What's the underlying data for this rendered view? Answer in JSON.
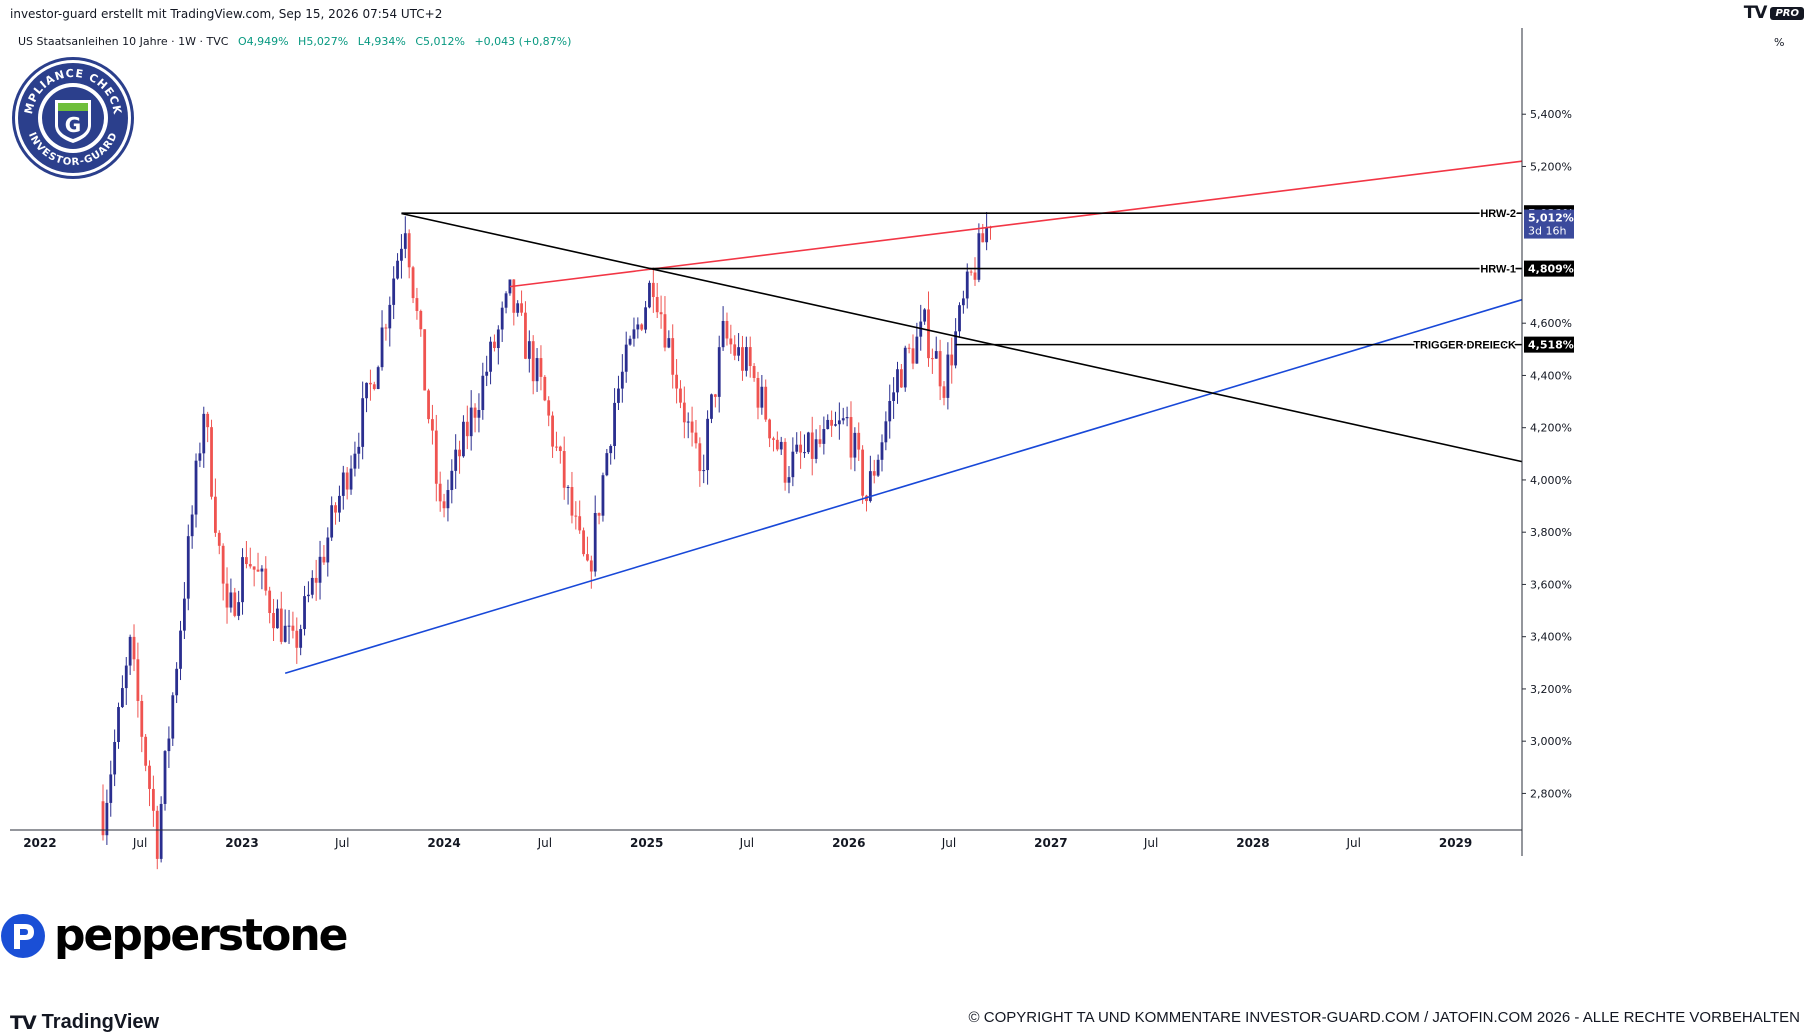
{
  "header": {
    "caption": "investor-guard erstellt mit TradingView.com, Sep 15, 2026 07:54 UTC+2",
    "tv_pro_logo": "TV",
    "tv_pro_badge": "PRO"
  },
  "symbol_line": {
    "name": "US Staatsanleihen 10 Jahre · 1W · TVC",
    "open": "O4,949%",
    "high": "H5,027%",
    "low": "L4,934%",
    "close": "C5,012%",
    "change": "+0,043 (+0,87%)"
  },
  "badge": {
    "top_text": "COMPLIANCE CHECKED",
    "bottom_text": "INVESTOR-GUARD",
    "letter": "G"
  },
  "watermark": {
    "brand": "pepperstone",
    "icon": "pepperstone-p-icon"
  },
  "footer": {
    "tradingview_brand": "TradingView",
    "tv_logo": "TV",
    "copyright": "© COPYRIGHT TA UND KOMMENTARE INVESTOR-GUARD.COM / JATOFIN.COM 2026 - ALLE RECHTE VORBEHALTEN"
  },
  "colors": {
    "up": "#2a2e8f",
    "down": "#ef5350",
    "red_line": "#f23645",
    "blue_line": "#1848d8",
    "black_line": "#000000",
    "last_price_bg": "#3b4a9c"
  },
  "chart_data": {
    "type": "candlestick",
    "unit_label": "%",
    "y_ticks": [
      {
        "value": 2.8,
        "label": "2,800%"
      },
      {
        "value": 3.0,
        "label": "3,000%"
      },
      {
        "value": 3.2,
        "label": "3,200%"
      },
      {
        "value": 3.4,
        "label": "3,400%"
      },
      {
        "value": 3.6,
        "label": "3,600%"
      },
      {
        "value": 3.8,
        "label": "3,800%"
      },
      {
        "value": 4.0,
        "label": "4,000%"
      },
      {
        "value": 4.2,
        "label": "4,200%"
      },
      {
        "value": 4.4,
        "label": "4,400%"
      },
      {
        "value": 4.6,
        "label": "4,600%"
      },
      {
        "value": 5.2,
        "label": "5,200%"
      },
      {
        "value": 5.4,
        "label": "5,400%"
      }
    ],
    "ylim": [
      2.66,
      5.73
    ],
    "x_ticks": [
      {
        "date": "2022-01-01",
        "label": "2022",
        "bold": true
      },
      {
        "date": "2022-07-01",
        "label": "Jul",
        "bold": false
      },
      {
        "date": "2023-01-01",
        "label": "2023",
        "bold": true
      },
      {
        "date": "2023-07-01",
        "label": "Jul",
        "bold": false
      },
      {
        "date": "2024-01-01",
        "label": "2024",
        "bold": true
      },
      {
        "date": "2024-07-01",
        "label": "Jul",
        "bold": false
      },
      {
        "date": "2025-01-01",
        "label": "2025",
        "bold": true
      },
      {
        "date": "2025-07-01",
        "label": "Jul",
        "bold": false
      },
      {
        "date": "2026-01-01",
        "label": "2026",
        "bold": true
      },
      {
        "date": "2026-07-01",
        "label": "Jul",
        "bold": false
      },
      {
        "date": "2027-01-01",
        "label": "2027",
        "bold": true
      },
      {
        "date": "2027-07-01",
        "label": "Jul",
        "bold": false
      },
      {
        "date": "2028-01-01",
        "label": "2028",
        "bold": true
      },
      {
        "date": "2028-07-01",
        "label": "Jul",
        "bold": false
      },
      {
        "date": "2029-01-01",
        "label": "2029",
        "bold": true
      }
    ],
    "xlim": [
      "2021-11-08",
      "2029-05-01"
    ],
    "price_path": [
      [
        "2022-04-25",
        2.72
      ],
      [
        "2022-06-13",
        3.35
      ],
      [
        "2022-08-01",
        2.62
      ],
      [
        "2022-10-24",
        4.28
      ],
      [
        "2022-12-05",
        3.45
      ],
      [
        "2023-01-09",
        3.72
      ],
      [
        "2023-04-03",
        3.35
      ],
      [
        "2023-06-05",
        3.78
      ],
      [
        "2023-08-21",
        4.35
      ],
      [
        "2023-10-23",
        5.0
      ],
      [
        "2023-12-25",
        3.87
      ],
      [
        "2024-04-29",
        4.7
      ],
      [
        "2024-06-24",
        4.35
      ],
      [
        "2024-09-16",
        3.62
      ],
      [
        "2024-11-04",
        4.3
      ],
      [
        "2025-01-13",
        4.78
      ],
      [
        "2025-04-07",
        4.0
      ],
      [
        "2025-05-19",
        4.55
      ],
      [
        "2025-07-07",
        4.42
      ],
      [
        "2025-09-08",
        4.05
      ],
      [
        "2025-11-03",
        4.12
      ],
      [
        "2025-12-29",
        4.22
      ],
      [
        "2026-02-02",
        3.93
      ],
      [
        "2026-03-30",
        4.4
      ],
      [
        "2026-05-18",
        4.58
      ],
      [
        "2026-06-22",
        4.38
      ],
      [
        "2026-08-03",
        4.72
      ],
      [
        "2026-09-14",
        5.01
      ]
    ],
    "candle_seed": 7,
    "trendlines": [
      {
        "name": "red-resistance-line",
        "color": "#f23645",
        "from": [
          "2024-04-29",
          4.74
        ],
        "to": [
          "2029-05-01",
          5.22
        ]
      },
      {
        "name": "blue-support-line",
        "color": "#1848d8",
        "from": [
          "2023-03-20",
          3.26
        ],
        "to": [
          "2029-05-01",
          4.69
        ]
      },
      {
        "name": "black-descending-line",
        "color": "#000000",
        "from": [
          "2023-10-16",
          5.02
        ],
        "to": [
          "2029-05-01",
          4.07
        ]
      }
    ],
    "levels": [
      {
        "name": "HRW-2",
        "value": 5.021,
        "label": "HRW-2",
        "from": "2023-10-16",
        "tag": "5,021%"
      },
      {
        "name": "HRW-1",
        "value": 4.809,
        "label": "HRW-1",
        "from": "2025-01-06",
        "tag": "4,809%"
      },
      {
        "name": "TRIGGER DREIECK",
        "value": 4.518,
        "label": "TRIGGER DREIECK",
        "from": "2026-07-13",
        "tag": "4,518%"
      }
    ],
    "last_price": {
      "value": 5.012,
      "label": "5,012%",
      "countdown": "3d 16h"
    }
  }
}
